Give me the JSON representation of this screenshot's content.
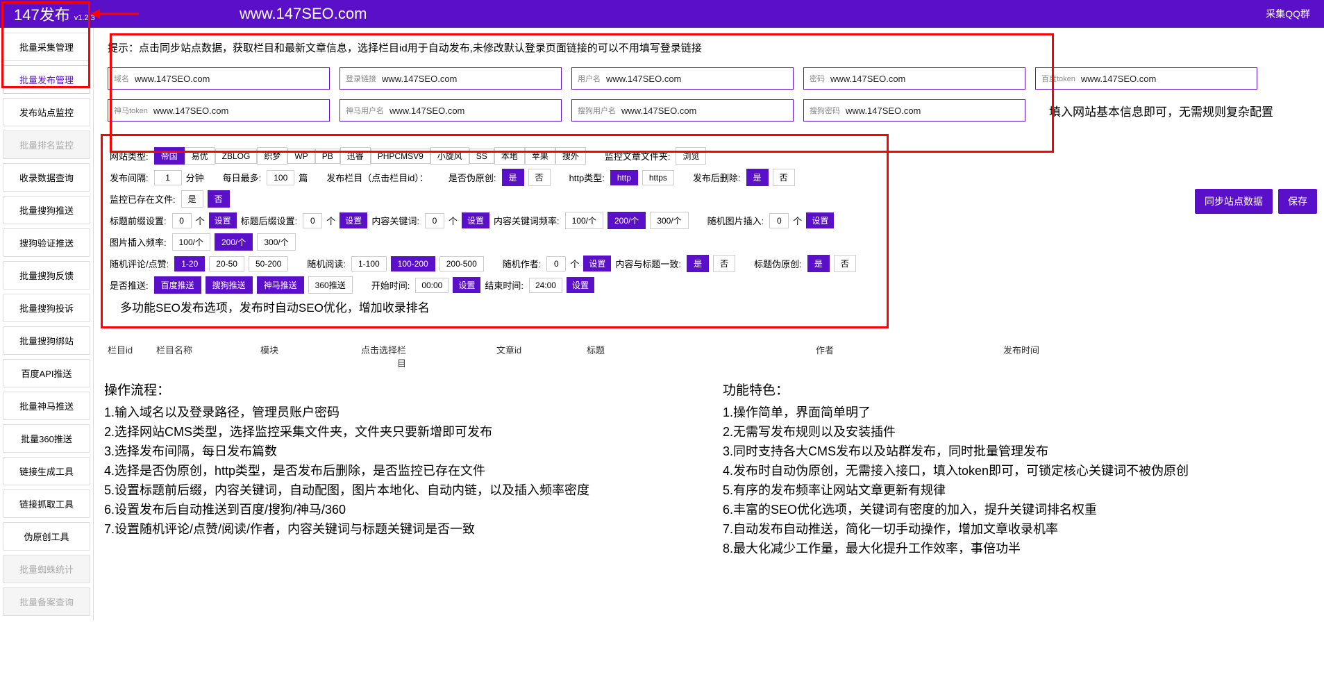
{
  "header": {
    "title": "147发布",
    "version": "v1.2.3",
    "url": "www.147SEO.com",
    "qq": "采集QQ群"
  },
  "sidebar": {
    "items": [
      {
        "label": "批量采集管理",
        "active": false,
        "disabled": false
      },
      {
        "label": "批量发布管理",
        "active": true,
        "disabled": false
      },
      {
        "label": "发布站点监控",
        "active": false,
        "disabled": false
      },
      {
        "label": "批量排名监控",
        "active": false,
        "disabled": true
      },
      {
        "label": "收录数据查询",
        "active": false,
        "disabled": false
      },
      {
        "label": "批量搜狗推送",
        "active": false,
        "disabled": false
      },
      {
        "label": "搜狗验证推送",
        "active": false,
        "disabled": false
      },
      {
        "label": "批量搜狗反馈",
        "active": false,
        "disabled": false
      },
      {
        "label": "批量搜狗投诉",
        "active": false,
        "disabled": false
      },
      {
        "label": "批量搜狗绑站",
        "active": false,
        "disabled": false
      },
      {
        "label": "百度API推送",
        "active": false,
        "disabled": false
      },
      {
        "label": "批量神马推送",
        "active": false,
        "disabled": false
      },
      {
        "label": "批量360推送",
        "active": false,
        "disabled": false
      },
      {
        "label": "链接生成工具",
        "active": false,
        "disabled": false
      },
      {
        "label": "链接抓取工具",
        "active": false,
        "disabled": false
      },
      {
        "label": "伪原创工具",
        "active": false,
        "disabled": false
      },
      {
        "label": "批量蜘蛛统计",
        "active": false,
        "disabled": true
      },
      {
        "label": "批量备案查询",
        "active": false,
        "disabled": true
      }
    ]
  },
  "hint": "提示：点击同步站点数据，获取栏目和最新文章信息，选择栏目id用于自动发布,未修改默认登录页面链接的可以不用填写登录链接",
  "inputs": [
    {
      "label": "域名",
      "value": "www.147SEO.com"
    },
    {
      "label": "登录链接",
      "value": "www.147SEO.com"
    },
    {
      "label": "用户名",
      "value": "www.147SEO.com"
    },
    {
      "label": "密码",
      "value": "www.147SEO.com"
    },
    {
      "label": "百度token",
      "value": "www.147SEO.com"
    },
    {
      "label": "神马token",
      "value": "www.147SEO.com"
    },
    {
      "label": "神马用户名",
      "value": "www.147SEO.com"
    },
    {
      "label": "搜狗用户名",
      "value": "www.147SEO.com"
    },
    {
      "label": "搜狗密码",
      "value": "www.147SEO.com"
    }
  ],
  "inputs_desc": "填入网站基本信息即可，无需规则复杂配置",
  "settings": {
    "site_type_label": "网站类型:",
    "site_types": [
      "帝国",
      "易优",
      "ZBLOG",
      "织梦",
      "WP",
      "PB",
      "迅睿",
      "PHPCMSV9",
      "小旋风",
      "SS",
      "本地",
      "苹果",
      "搜外"
    ],
    "site_type_selected": "帝国",
    "monitor_folder_label": "监控文章文件夹:",
    "browse": "浏览",
    "interval_label": "发布间隔:",
    "interval_value": "1",
    "interval_unit": "分钟",
    "daily_max_label": "每日最多:",
    "daily_max_value": "100",
    "daily_max_unit": "篇",
    "publish_col_label": "发布栏目（点击栏目id）：",
    "fake_original_label": "是否伪原创:",
    "yes": "是",
    "no": "否",
    "http_type_label": "http类型:",
    "http": "http",
    "https": "https",
    "delete_after_label": "发布后删除:",
    "monitor_exist_label": "监控已存在文件:",
    "title_prefix_label": "标题前缀设置:",
    "zero": "0",
    "unit_ge": "个",
    "set": "设置",
    "title_suffix_label": "标题后缀设置:",
    "content_keyword_label": "内容关键词:",
    "content_keyword_freq_label": "内容关键词频率:",
    "freq_opts": [
      "100/个",
      "200/个",
      "300/个"
    ],
    "random_img_label": "随机图片插入:",
    "img_freq_label": "图片插入频率:",
    "random_comment_label": "随机评论/点赞:",
    "comment_opts": [
      "1-20",
      "20-50",
      "50-200"
    ],
    "random_read_label": "随机阅读:",
    "read_opts": [
      "1-100",
      "100-200",
      "200-500"
    ],
    "random_author_label": "随机作者:",
    "content_title_match_label": "内容与标题一致:",
    "title_fake_label": "标题伪原创:",
    "is_push_label": "是否推送:",
    "push_opts": [
      "百度推送",
      "搜狗推送",
      "神马推送",
      "360推送"
    ],
    "start_time_label": "开始时间:",
    "start_time": "00:00",
    "end_time_label": "结束时间:",
    "end_time": "24:00",
    "settings_desc": "多功能SEO发布选项，发布时自动SEO优化，增加收录排名"
  },
  "actions": {
    "sync": "同步站点数据",
    "save": "保存"
  },
  "table_headers_left": [
    "栏目id",
    "栏目名称",
    "模块",
    "点击选择栏目"
  ],
  "table_headers_right": [
    "文章id",
    "标题",
    "作者",
    "发布时间"
  ],
  "flow": {
    "title": "操作流程：",
    "lines": [
      "1.输入域名以及登录路径，管理员账户密码",
      "2.选择网站CMS类型，选择监控采集文件夹，文件夹只要新增即可发布",
      "3.选择发布间隔，每日发布篇数",
      "4.选择是否伪原创，http类型，是否发布后删除，是否监控已存在文件",
      "5.设置标题前后缀，内容关键词，自动配图，图片本地化、自动内链，以及插入频率密度",
      "6.设置发布后自动推送到百度/搜狗/神马/360",
      "7.设置随机评论/点赞/阅读/作者，内容关键词与标题关键词是否一致"
    ]
  },
  "features": {
    "title": "功能特色：",
    "lines": [
      "1.操作简单，界面简单明了",
      "2.无需写发布规则以及安装插件",
      "3.同时支持各大CMS发布以及站群发布，同时批量管理发布",
      "4.发布时自动伪原创，无需接入接口，填入token即可，可锁定核心关键词不被伪原创",
      "5.有序的发布频率让网站文章更新有规律",
      "6.丰富的SEO优化选项，关键词有密度的加入，提升关键词排名权重",
      "7.自动发布自动推送，简化一切手动操作，增加文章收录机率",
      "8.最大化减少工作量，最大化提升工作效率，事倍功半"
    ]
  }
}
